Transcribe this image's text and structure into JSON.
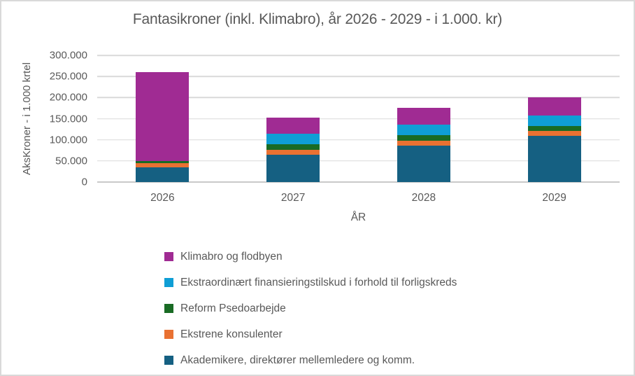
{
  "chart_data": {
    "type": "bar",
    "stacked": true,
    "title": "Fantasikroner (inkl. Klimabro), år 2026 - 2029 - i 1.000. kr)",
    "xlabel": "ÅR",
    "ylabel": "AksKroner - i 1.000 krtel",
    "categories": [
      "2026",
      "2027",
      "2028",
      "2029"
    ],
    "series": [
      {
        "name": "Akademikere, direktører mellemledere og komm.",
        "color": "#156082",
        "values": [
          35000,
          64000,
          87000,
          110000
        ]
      },
      {
        "name": "Ekstrene konsulenter",
        "color": "#E97132",
        "values": [
          10000,
          12000,
          11000,
          11000
        ]
      },
      {
        "name": "Reform Psedoarbejde",
        "color": "#196B24",
        "values": [
          5000,
          13000,
          13000,
          11000
        ]
      },
      {
        "name": "Ekstraordinært finansieringstilskud i forhold til forligskreds",
        "color": "#0F9ED5",
        "values": [
          0,
          26000,
          25000,
          26000
        ]
      },
      {
        "name": "Klimabro og flodbyen",
        "color": "#A02B93",
        "values": [
          210000,
          37000,
          39000,
          42000
        ]
      }
    ],
    "totals": [
      260000,
      152000,
      175000,
      200000
    ],
    "ylim": [
      0,
      300000
    ],
    "ytick_step": 50000,
    "ytick_labels": [
      "0",
      "50.000",
      "100.000",
      "150.000",
      "200.000",
      "250.000",
      "300.000"
    ],
    "grid": true,
    "legend_position": "bottom-left"
  },
  "legend": {
    "items": [
      {
        "label": "Klimabro og flodbyen",
        "color": "#A02B93"
      },
      {
        "label": "Ekstraordinært finansieringstilskud i forhold til forligskreds",
        "color": "#0F9ED5"
      },
      {
        "label": "Reform Psedoarbejde",
        "color": "#196B24"
      },
      {
        "label": "Ekstrene konsulenter",
        "color": "#E97132"
      },
      {
        "label": "Akademikere, direktører mellemledere og komm.",
        "color": "#156082"
      }
    ]
  },
  "colors": {
    "text": "#595959",
    "gridline": "#D9D9D9",
    "border": "#D9D9D9",
    "background": "#FFFFFF"
  }
}
